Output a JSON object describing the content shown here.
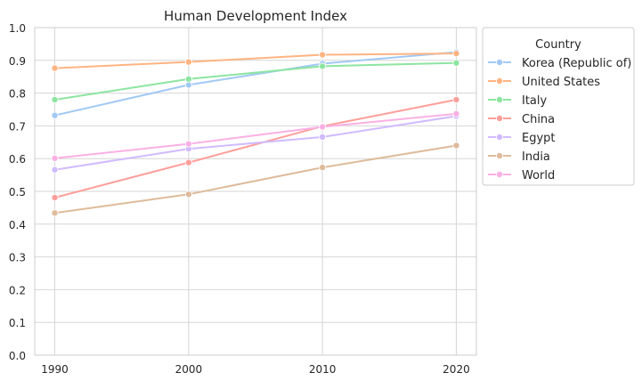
{
  "chart_data": {
    "type": "line",
    "title": "Human Development Index",
    "xlabel": "",
    "ylabel": "",
    "x": [
      1990,
      2000,
      2010,
      2020
    ],
    "x_ticks": [
      "1990",
      "2000",
      "2010",
      "2020"
    ],
    "xlim": [
      1988.5,
      2021.5
    ],
    "ylim": [
      0.0,
      1.0
    ],
    "y_ticks": [
      "0.0",
      "0.1",
      "0.2",
      "0.3",
      "0.4",
      "0.5",
      "0.6",
      "0.7",
      "0.8",
      "0.9",
      "1.0"
    ],
    "grid": true,
    "marker": "circle",
    "legend": {
      "title": "Country",
      "placement": "outside-right"
    },
    "series": [
      {
        "name": "Korea (Republic of)",
        "color": "#a1c9f4",
        "values": [
          0.732,
          0.825,
          0.89,
          0.925
        ]
      },
      {
        "name": "United States",
        "color": "#ffb482",
        "values": [
          0.876,
          0.895,
          0.917,
          0.921
        ]
      },
      {
        "name": "Italy",
        "color": "#8de5a1",
        "values": [
          0.78,
          0.843,
          0.882,
          0.892
        ]
      },
      {
        "name": "China",
        "color": "#ff9f9b",
        "values": [
          0.481,
          0.588,
          0.699,
          0.78
        ]
      },
      {
        "name": "Egypt",
        "color": "#d0bbff",
        "values": [
          0.566,
          0.63,
          0.666,
          0.73
        ]
      },
      {
        "name": "India",
        "color": "#debb9b",
        "values": [
          0.434,
          0.491,
          0.573,
          0.64
        ]
      },
      {
        "name": "World",
        "color": "#fab0e4",
        "values": [
          0.601,
          0.645,
          0.697,
          0.737
        ]
      }
    ]
  }
}
